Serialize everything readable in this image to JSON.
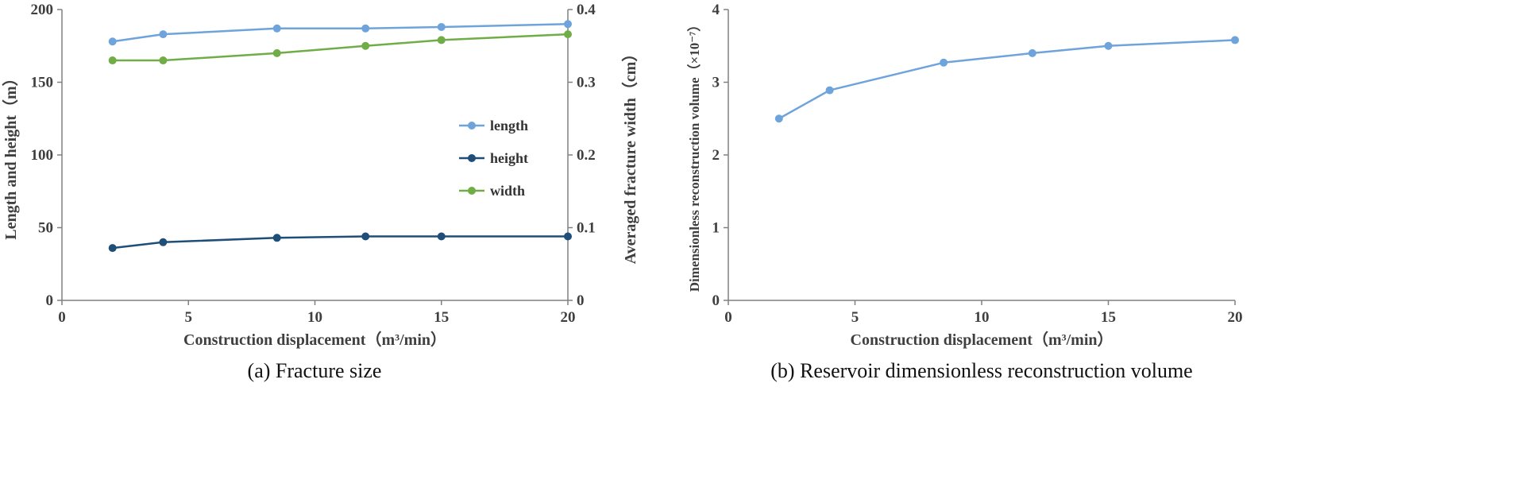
{
  "page": {
    "background": "#ffffff"
  },
  "captions": {
    "a": "(a) Fracture size",
    "b": "(b) Reservoir dimensionless reconstruction volume"
  },
  "colors": {
    "axis": "#808080",
    "text": "#3f3f3f",
    "light_blue": "#6FA3DC",
    "dark_blue": "#1F4E79",
    "green": "#70AD47"
  },
  "chart_data": [
    {
      "id": "chartA",
      "type": "line",
      "title": "",
      "xlabel": "Construction displacement（m³/min）",
      "ylabel_left": "Length and height（m）",
      "ylabel_right": "Averaged fracture width（cm）",
      "x": [
        2,
        4,
        8.5,
        12,
        15,
        20
      ],
      "xlim": [
        0,
        20
      ],
      "xticks": [
        0,
        5,
        10,
        15,
        20
      ],
      "ylim_left": [
        0,
        200
      ],
      "yticks_left": [
        0,
        50,
        100,
        150,
        200
      ],
      "ylim_right": [
        0,
        0.4
      ],
      "yticks_right": [
        0,
        0.1,
        0.2,
        0.3,
        0.4
      ],
      "grid": false,
      "legend_position": "center-right",
      "series": [
        {
          "name": "length",
          "axis": "left",
          "color": "#6FA3DC",
          "values": [
            178,
            183,
            187,
            187,
            188,
            190
          ]
        },
        {
          "name": "height",
          "axis": "left",
          "color": "#1F4E79",
          "values": [
            36,
            40,
            43,
            44,
            44,
            44
          ]
        },
        {
          "name": "width",
          "axis": "right",
          "color": "#70AD47",
          "values": [
            0.33,
            0.33,
            0.34,
            0.35,
            0.358,
            0.366
          ]
        }
      ]
    },
    {
      "id": "chartB",
      "type": "line",
      "title": "",
      "xlabel": "Construction displacement（m³/min）",
      "ylabel_left": "Dimensionless reconstruction volume（×10⁻⁷）",
      "x": [
        2,
        4,
        8.5,
        12,
        15,
        20
      ],
      "xlim": [
        0,
        20
      ],
      "xticks": [
        0,
        5,
        10,
        15,
        20
      ],
      "ylim_left": [
        0,
        4
      ],
      "yticks_left": [
        0,
        1,
        2,
        3,
        4
      ],
      "grid": false,
      "legend_position": "none",
      "series": [
        {
          "name": "volume",
          "axis": "left",
          "color": "#6FA3DC",
          "values": [
            2.5,
            2.89,
            3.27,
            3.4,
            3.5,
            3.58
          ]
        }
      ]
    }
  ]
}
